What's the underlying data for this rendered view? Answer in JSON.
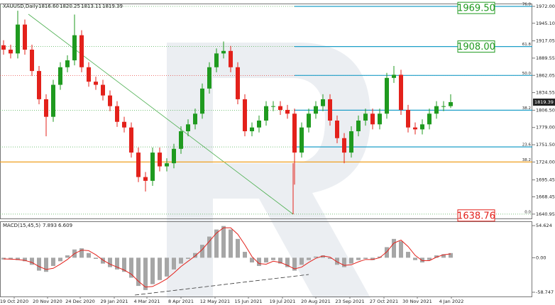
{
  "chart_data": [
    {
      "type": "candlestick",
      "header": [
        "XAUUSD,Daily",
        "1816.60",
        "1820.25",
        "1813.11",
        "1819.39"
      ],
      "xlim": [
        -0.5,
        74.5
      ],
      "ylim": [
        1634,
        1976.5
      ],
      "yticks": [
        {
          "value": 1972,
          "label": "1972.00"
        },
        {
          "value": 1945.1,
          "label": "1945.10"
        },
        1917.05,
        1889.55,
        1862.05,
        1834.55,
        {
          "value": 1806.5,
          "label": "1806.50"
        },
        {
          "value": 1779,
          "label": "1779.00"
        },
        {
          "value": 1751.5,
          "label": "1751.50"
        },
        {
          "value": 1724,
          "label": "1724.00"
        },
        1695.45,
        1668.45,
        1640.95
      ],
      "xticks": [
        {
          "value": 1.5,
          "label": "19 Oct 2020"
        },
        {
          "value": 6.2,
          "label": "20 Nov 2020"
        },
        {
          "value": 10.8,
          "label": "24 Dec 2020"
        },
        {
          "value": 15.6,
          "label": "29 Jan 2021"
        },
        {
          "value": 20.2,
          "label": "4 Mar 2021"
        },
        {
          "value": 25,
          "label": "8 Apr 2021"
        },
        {
          "value": 29.8,
          "label": "12 May 2021"
        },
        {
          "value": 34.5,
          "label": "15 Jun 2021"
        },
        {
          "value": 39.3,
          "label": "19 Jul 2021"
        },
        {
          "value": 44,
          "label": "20 Aug 2021"
        },
        {
          "value": 48.8,
          "label": "23 Sep 2021"
        },
        {
          "value": 53.6,
          "label": "27 Oct 2021"
        },
        {
          "value": 58.3,
          "label": "30 Nov 2021"
        },
        {
          "value": 63.1,
          "label": "4 Jan 2022"
        }
      ],
      "open": [
        1910,
        1903,
        1897,
        1943,
        1903,
        1869,
        1824,
        1796,
        1847,
        1875,
        1886,
        1926,
        1875,
        1852,
        1847,
        1830,
        1813,
        1788,
        1779,
        1739,
        1700,
        1694,
        1739,
        1717,
        1722,
        1745,
        1773,
        1784,
        1801,
        1841,
        1875,
        1897,
        1901,
        1875,
        1824,
        1773,
        1779,
        1790,
        1813,
        1813,
        1807,
        1801,
        1739,
        1779,
        1801,
        1813,
        1824,
        1790,
        1762,
        1739,
        1773,
        1790,
        1801,
        1784,
        1801,
        1858,
        1863,
        1807,
        1779,
        1776,
        1784,
        1801,
        1813,
        1813
      ],
      "high": [
        1918,
        1911,
        1965,
        1951,
        1911,
        1877,
        1832,
        1855,
        1883,
        1894,
        1959,
        1934,
        1883,
        1860,
        1855,
        1838,
        1821,
        1796,
        1787,
        1747,
        1708,
        1747,
        1747,
        1730,
        1753,
        1781,
        1792,
        1809,
        1849,
        1883,
        1905,
        1916,
        1909,
        1883,
        1832,
        1787,
        1798,
        1821,
        1821,
        1821,
        1815,
        1809,
        1787,
        1809,
        1821,
        1832,
        1832,
        1798,
        1770,
        1781,
        1798,
        1809,
        1809,
        1809,
        1866,
        1877,
        1871,
        1815,
        1787,
        1792,
        1809,
        1821,
        1821,
        1832
      ],
      "low": [
        1895,
        1889,
        1889,
        1895,
        1861,
        1816,
        1765,
        1788,
        1839,
        1867,
        1878,
        1867,
        1844,
        1839,
        1822,
        1805,
        1780,
        1771,
        1731,
        1692,
        1677,
        1686,
        1709,
        1709,
        1714,
        1737,
        1765,
        1776,
        1793,
        1833,
        1867,
        1889,
        1867,
        1816,
        1765,
        1765,
        1771,
        1782,
        1805,
        1799,
        1793,
        1688,
        1731,
        1771,
        1793,
        1805,
        1782,
        1754,
        1722,
        1731,
        1765,
        1782,
        1776,
        1776,
        1793,
        1850,
        1799,
        1771,
        1768,
        1768,
        1776,
        1793,
        1805,
        1810
      ],
      "close": [
        1903,
        1897,
        1943,
        1903,
        1869,
        1824,
        1796,
        1847,
        1875,
        1886,
        1926,
        1875,
        1852,
        1847,
        1830,
        1813,
        1788,
        1779,
        1739,
        1700,
        1694,
        1739,
        1717,
        1722,
        1745,
        1773,
        1784,
        1801,
        1841,
        1875,
        1897,
        1901,
        1875,
        1824,
        1773,
        1779,
        1790,
        1813,
        1813,
        1807,
        1801,
        1739,
        1779,
        1801,
        1813,
        1824,
        1790,
        1762,
        1739,
        1773,
        1790,
        1801,
        1784,
        1801,
        1858,
        1863,
        1807,
        1779,
        1776,
        1784,
        1801,
        1813,
        1813,
        1819.39
      ],
      "up_color": "#1f9a1f",
      "down_color": "#e3211b",
      "levels": [
        {
          "value": 1972,
          "label": "76.0"
        },
        {
          "value": 1908,
          "label": "61.8"
        },
        {
          "value": 1862,
          "label": "50.0"
        },
        {
          "value": 1806.5,
          "label": "38.2"
        },
        {
          "value": 1748,
          "label": "23.6"
        },
        {
          "value": 1724,
          "label": "38.2"
        },
        {
          "value": 1640.95,
          "label": "0.0"
        }
      ],
      "annotations": [
        {
          "value": 1969.5,
          "label": "1969.50",
          "color": "#1f9a1f"
        },
        {
          "value": 1908,
          "label": "1908.00",
          "color": "#1f9a1f"
        },
        {
          "value": 1638.76,
          "label": "1638.76",
          "color": "#e3211b"
        }
      ]
    },
    {
      "type": "macd",
      "header": [
        "MACD(15,45,5)",
        "7.893",
        "6.609"
      ],
      "xlim": [
        -0.5,
        74.5
      ],
      "ylim": [
        -66,
        62
      ],
      "yticks": [
        54.624,
        {
          "value": 0,
          "label": "0.00"
        },
        -58.747
      ],
      "series": [
        {
          "color": "#a6a6a6",
          "values": [
            -3,
            -2,
            -4,
            -6,
            -12,
            -22,
            -24,
            -14,
            -6,
            4,
            14,
            16,
            8,
            -2,
            -10,
            -16,
            -20,
            -24,
            -34,
            -48,
            -55,
            -45,
            -38,
            -32,
            -20,
            -10,
            -2,
            8,
            22,
            36,
            48,
            54,
            48,
            32,
            10,
            -8,
            -14,
            -8,
            -4,
            -10,
            -16,
            -22,
            -12,
            -4,
            2,
            4,
            -2,
            -12,
            -16,
            -10,
            -4,
            -2,
            -4,
            2,
            18,
            32,
            28,
            10,
            -4,
            -8,
            -4,
            4,
            6,
            7.893
          ]
        },
        {
          "color": "#e3211b",
          "values": [
            -2,
            -2.5,
            -3,
            -4.5,
            -8,
            -15,
            -20,
            -18,
            -11,
            -3,
            7,
            13,
            12,
            5,
            -4,
            -11,
            -16,
            -21,
            -28,
            -40,
            -50,
            -49,
            -43,
            -36,
            -26,
            -15,
            -6,
            3,
            14,
            28,
            42,
            51,
            51,
            40,
            22,
            2,
            -10,
            -11,
            -6,
            -8,
            -13,
            -19,
            -16,
            -8,
            -1,
            3,
            1,
            -7,
            -13,
            -12,
            -7,
            -3,
            -3,
            0,
            10,
            25,
            30,
            19,
            4,
            -5,
            -5,
            1,
            5,
            6.609
          ]
        }
      ]
    }
  ]
}
